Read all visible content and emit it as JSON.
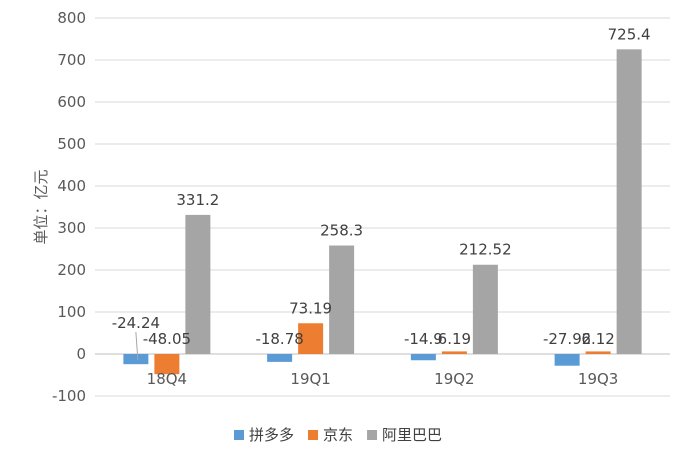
{
  "chart_data": {
    "type": "bar",
    "title": "",
    "xlabel": "",
    "ylabel": "单位：亿元",
    "ylim": [
      -100,
      800
    ],
    "yticks": [
      -100,
      0,
      100,
      200,
      300,
      400,
      500,
      600,
      700,
      800
    ],
    "categories": [
      "18Q4",
      "19Q1",
      "19Q2",
      "19Q3"
    ],
    "series": [
      {
        "name": "拼多多",
        "color": "#5b9bd5",
        "values": [
          -24.24,
          -18.78,
          -14.9,
          -27.92
        ],
        "labels": [
          "-24.24",
          "-18.78",
          "-14.9",
          "-27.92"
        ]
      },
      {
        "name": "京东",
        "color": "#ed7d31",
        "values": [
          -48.05,
          73.19,
          6.19,
          6.12
        ],
        "labels": [
          "-48.05",
          "73.19",
          "6.19",
          "6.12"
        ]
      },
      {
        "name": "阿里巴巴",
        "color": "#a5a5a5",
        "values": [
          331.2,
          258.3,
          212.52,
          725.4
        ],
        "labels": [
          "331.2",
          "258.3",
          "212.52",
          "725.4"
        ]
      }
    ],
    "grid": true,
    "legend_position": "bottom"
  }
}
